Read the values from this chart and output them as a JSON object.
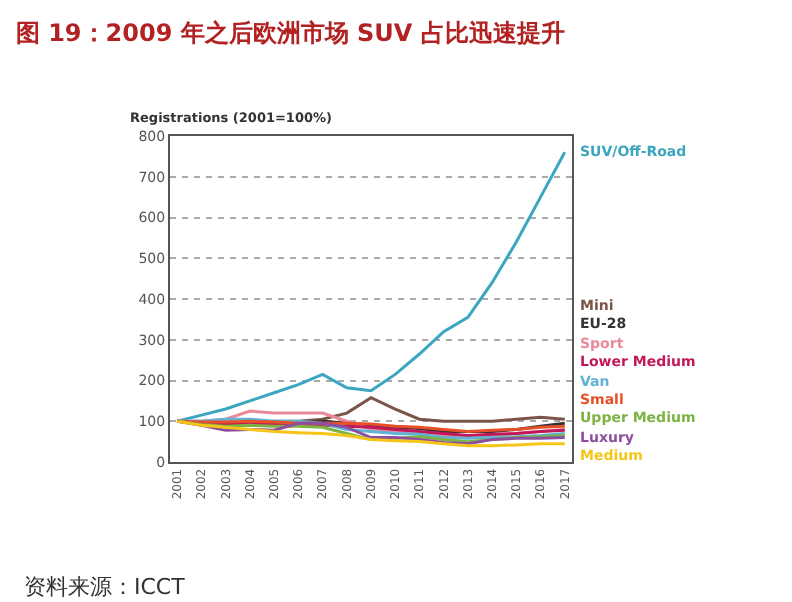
{
  "chart_data": {
    "type": "line",
    "title": "图 19：2009 年之后欧洲市场 SUV 占比迅速提升",
    "ylabel": "Registrations (2001=100%)",
    "categories": [
      "2001",
      "2002",
      "2003",
      "2004",
      "2005",
      "2006",
      "2007",
      "2008",
      "2009",
      "2010",
      "2011",
      "2012",
      "2013",
      "2014",
      "2015",
      "2016",
      "2017"
    ],
    "series": [
      {
        "name": "SUV/Off-Road",
        "color": "#3aa6c0",
        "values": [
          100,
          115,
          130,
          150,
          170,
          190,
          215,
          182,
          175,
          215,
          265,
          320,
          355,
          440,
          540,
          650,
          760
        ]
      },
      {
        "name": "Mini",
        "color": "#7a5548",
        "values": [
          100,
          95,
          90,
          95,
          100,
          100,
          105,
          120,
          158,
          130,
          105,
          100,
          100,
          100,
          105,
          110,
          105
        ]
      },
      {
        "name": "EU-28",
        "color": "#333333",
        "values": [
          100,
          95,
          95,
          95,
          95,
          95,
          100,
          95,
          90,
          85,
          82,
          75,
          75,
          75,
          80,
          88,
          95
        ]
      },
      {
        "name": "Sport",
        "color": "#e98a9a",
        "values": [
          100,
          100,
          105,
          125,
          120,
          120,
          120,
          100,
          80,
          75,
          70,
          65,
          60,
          65,
          70,
          75,
          80
        ]
      },
      {
        "name": "Lower Medium",
        "color": "#c2185b",
        "values": [
          100,
          95,
          95,
          95,
          92,
          90,
          90,
          88,
          85,
          80,
          75,
          70,
          65,
          68,
          70,
          75,
          78
        ]
      },
      {
        "name": "Van",
        "color": "#5fb3d6",
        "values": [
          100,
          100,
          105,
          105,
          100,
          100,
          95,
          80,
          75,
          70,
          68,
          60,
          58,
          60,
          62,
          65,
          70
        ]
      },
      {
        "name": "Small",
        "color": "#e8502a",
        "values": [
          100,
          98,
          98,
          100,
          98,
          95,
          95,
          95,
          93,
          88,
          85,
          80,
          75,
          78,
          80,
          85,
          88
        ]
      },
      {
        "name": "Upper Medium",
        "color": "#7cb342",
        "values": [
          100,
          92,
          88,
          90,
          88,
          88,
          85,
          70,
          55,
          58,
          62,
          55,
          50,
          55,
          60,
          62,
          65
        ]
      },
      {
        "name": "Luxury",
        "color": "#8e4ea0",
        "values": [
          100,
          90,
          78,
          80,
          78,
          95,
          95,
          85,
          60,
          60,
          55,
          48,
          45,
          55,
          58,
          58,
          60
        ]
      },
      {
        "name": "Medium",
        "color": "#f5c518",
        "values": [
          100,
          90,
          85,
          80,
          75,
          72,
          70,
          65,
          55,
          52,
          50,
          45,
          40,
          40,
          42,
          45,
          45
        ]
      }
    ],
    "ylim": [
      0,
      800
    ],
    "yticks": [
      0,
      100,
      200,
      300,
      400,
      500,
      600,
      700,
      800
    ],
    "grid": "y",
    "annotations": [
      "资料来源：ICCT"
    ]
  }
}
